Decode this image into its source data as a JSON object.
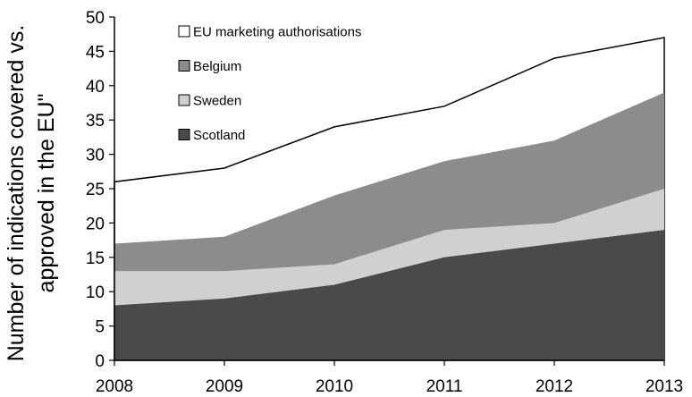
{
  "chart_data": {
    "type": "area",
    "title": "",
    "xlabel": "",
    "ylabel_lines": [
      "Number of indications covered vs.",
      "approved in the EU\""
    ],
    "x": [
      2008,
      2009,
      2010,
      2011,
      2012,
      2013
    ],
    "x_tick_labels": [
      "2008",
      "2009",
      "2010",
      "2011",
      "2012",
      "2013"
    ],
    "ylim": [
      0,
      50
    ],
    "y_ticks": [
      0,
      5,
      10,
      15,
      20,
      25,
      30,
      35,
      40,
      45,
      50
    ],
    "y_tick_labels": [
      "0",
      "5",
      "10",
      "15",
      "20",
      "25",
      "30",
      "35",
      "40",
      "45",
      "50"
    ],
    "grid": false,
    "legend_position": "top-left",
    "stacked": false,
    "series": [
      {
        "name": "EU marketing authorisations",
        "values": [
          26,
          28,
          34,
          37,
          44,
          47
        ],
        "color": "#ffffff"
      },
      {
        "name": "Belgium",
        "values": [
          17,
          18,
          24,
          29,
          32,
          39
        ],
        "color": "#8c8c8c"
      },
      {
        "name": "Sweden",
        "values": [
          13,
          13,
          14,
          19,
          20,
          25
        ],
        "color": "#d0d0d0"
      },
      {
        "name": "Scotland",
        "values": [
          8,
          9,
          11,
          15,
          17,
          19
        ],
        "color": "#4a4a4a"
      }
    ]
  }
}
